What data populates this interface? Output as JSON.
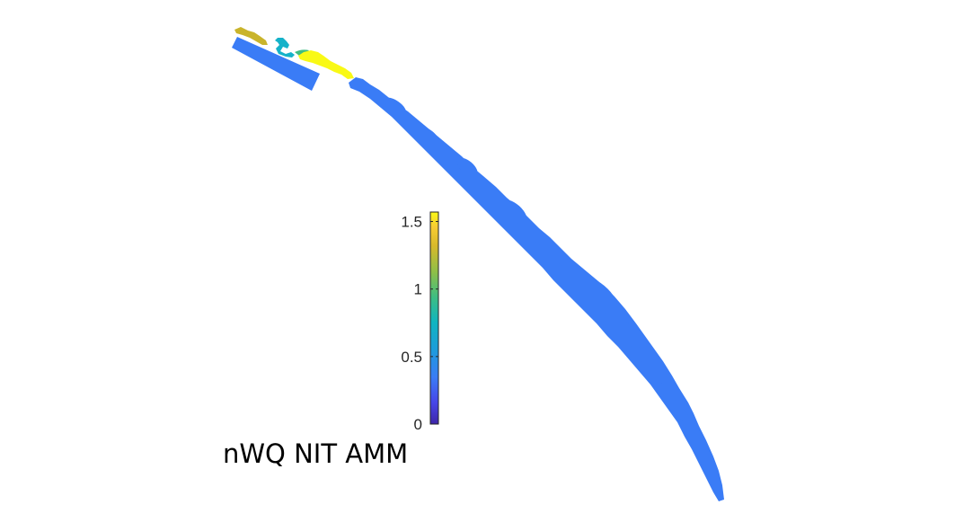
{
  "figure": {
    "title": "nWQ NIT AMM"
  },
  "colorbar": {
    "range": [
      0,
      1.57
    ],
    "ticks": [
      {
        "value": 0,
        "label": "0"
      },
      {
        "value": 0.5,
        "label": "0.5"
      },
      {
        "value": 1,
        "label": "1"
      },
      {
        "value": 1.5,
        "label": "1.5"
      }
    ],
    "colormap": "parula",
    "colors": {
      "low": "#3e26a8",
      "blue": "#3a7cf6",
      "cyan": "#15b2c9",
      "green": "#3fbd82",
      "olive": "#c9b42b",
      "yellow": "#f9f915"
    }
  },
  "map": {
    "regions": [
      {
        "name": "offshore-boundary-block",
        "value": 0.45
      },
      {
        "name": "upper-olive-channel",
        "value": 1.4
      },
      {
        "name": "cyan-tributary",
        "value": 0.8
      },
      {
        "name": "yellow-inlet-reach",
        "value": 1.57
      },
      {
        "name": "main-estuary-channel",
        "value": 0.45
      }
    ]
  }
}
